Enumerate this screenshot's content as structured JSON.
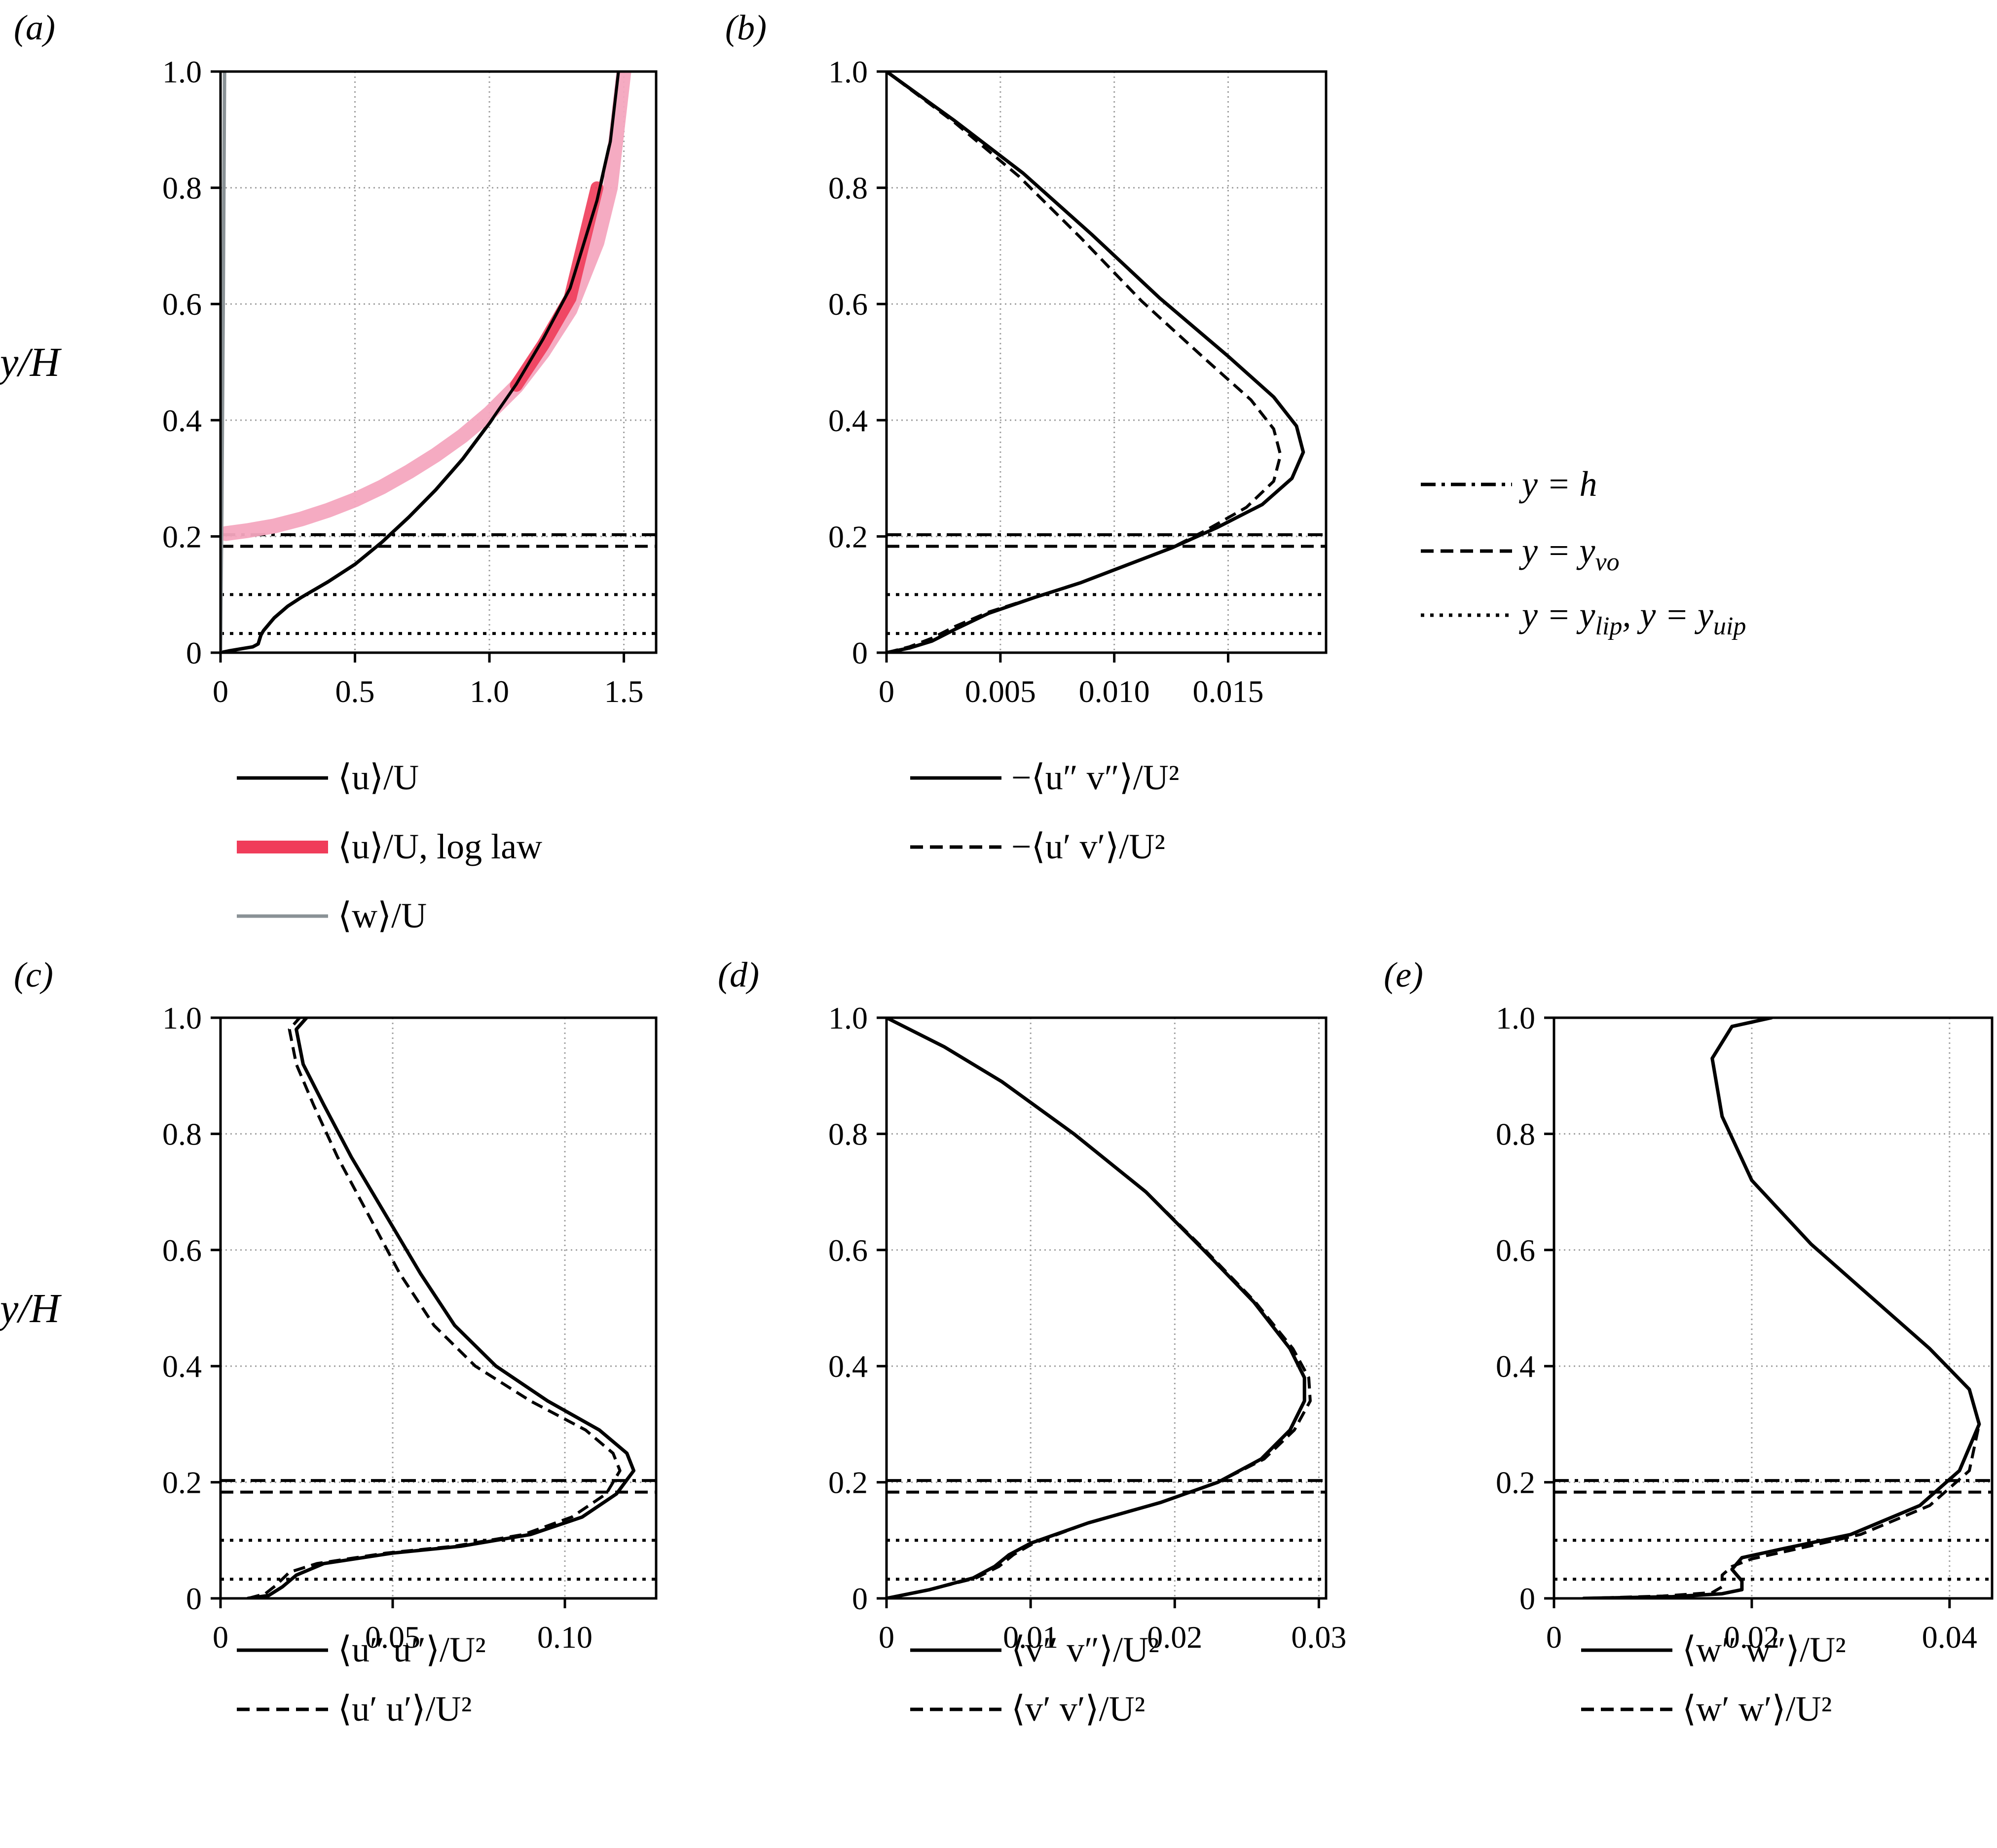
{
  "figure": {
    "line_styles": {
      "y_h": "dash-dot",
      "y_vo": "dashed",
      "y_lip_uip": "dotted"
    },
    "reference_lines": {
      "y_h": 0.203,
      "y_vo": 0.183,
      "y_uip": 0.1,
      "y_lip": 0.033
    },
    "colors": {
      "black": "#000000",
      "loglaw_light": "#f4a6bf",
      "loglaw_dark": "#f03c5a",
      "gray": "#8a9296",
      "grid": "#a0a0a0"
    }
  },
  "chart_data": [
    {
      "id": "a",
      "panel_label": "(a)",
      "type": "line",
      "ylabel": "y/H",
      "xlim": [
        0,
        1.62
      ],
      "ylim": [
        0,
        1.0
      ],
      "xticks": [
        0,
        0.5,
        1.0,
        1.5
      ],
      "xtick_labels": [
        "0",
        "0.5",
        "1.0",
        "1.5"
      ],
      "yticks": [
        0,
        0.2,
        0.4,
        0.6,
        0.8,
        1.0
      ],
      "ytick_labels": [
        "0",
        "0.2",
        "0.4",
        "0.6",
        "0.8",
        "1.0"
      ],
      "grid": true,
      "series": [
        {
          "name": "⟨u⟩/U",
          "style": "solid",
          "color": "#000000",
          "x": [
            0,
            0.03,
            0.08,
            0.12,
            0.14,
            0.15,
            0.16,
            0.2,
            0.25,
            0.3,
            0.4,
            0.5,
            0.6,
            0.7,
            0.8,
            0.9,
            1.0,
            1.1,
            1.2,
            1.3,
            1.4,
            1.45,
            1.48
          ],
          "y": [
            0,
            0.003,
            0.007,
            0.01,
            0.015,
            0.03,
            0.038,
            0.06,
            0.08,
            0.095,
            0.122,
            0.152,
            0.19,
            0.233,
            0.28,
            0.333,
            0.395,
            0.462,
            0.54,
            0.627,
            0.778,
            0.88,
            1.0
          ]
        },
        {
          "name": "⟨u⟩/U, log law",
          "style": "band",
          "color": "#f4a6bf",
          "x": [
            0.02,
            0.1,
            0.2,
            0.3,
            0.4,
            0.5,
            0.6,
            0.7,
            0.8,
            0.9,
            1.0,
            1.1,
            1.2,
            1.3,
            1.4,
            1.45,
            1.5
          ],
          "y": [
            0.205,
            0.21,
            0.218,
            0.23,
            0.245,
            0.263,
            0.285,
            0.311,
            0.34,
            0.373,
            0.412,
            0.458,
            0.518,
            0.59,
            0.706,
            0.8,
            1.0
          ]
        },
        {
          "name": "",
          "style": "band-dark",
          "color": "#f03c5a",
          "x": [
            1.1,
            1.2,
            1.3,
            1.4
          ],
          "y": [
            0.46,
            0.53,
            0.61,
            0.8
          ]
        },
        {
          "name": "⟨w⟩/U",
          "style": "solid",
          "color": "#8a9296",
          "x": [
            0,
            0.005,
            0.01,
            0.015
          ],
          "y": [
            0,
            0.25,
            0.6,
            1.0
          ]
        }
      ]
    },
    {
      "id": "b",
      "panel_label": "(b)",
      "type": "line",
      "ylabel": "",
      "xlim": [
        0,
        0.0193
      ],
      "ylim": [
        0,
        1.0
      ],
      "xticks": [
        0,
        0.005,
        0.01,
        0.015
      ],
      "xtick_labels": [
        "0",
        "0.005",
        "0.010",
        "0.015"
      ],
      "yticks": [
        0,
        0.2,
        0.4,
        0.6,
        0.8,
        1.0
      ],
      "ytick_labels": [
        "0",
        "0.2",
        "0.4",
        "0.6",
        "0.8",
        "1.0"
      ],
      "grid": true,
      "series": [
        {
          "name": "−⟨u″ v″⟩/U²",
          "style": "solid",
          "color": "#000000",
          "x": [
            0,
            0.001,
            0.002,
            0.003,
            0.0045,
            0.0065,
            0.0085,
            0.0105,
            0.0125,
            0.0145,
            0.0165,
            0.0178,
            0.0183,
            0.018,
            0.017,
            0.015,
            0.012,
            0.009,
            0.006,
            0.003,
            0
          ],
          "y": [
            0,
            0.008,
            0.02,
            0.04,
            0.068,
            0.095,
            0.12,
            0.15,
            0.18,
            0.215,
            0.255,
            0.3,
            0.345,
            0.39,
            0.44,
            0.51,
            0.61,
            0.72,
            0.825,
            0.915,
            1.0
          ]
        },
        {
          "name": "−⟨u′ v′⟩/U²",
          "style": "dashed",
          "color": "#000000",
          "x": [
            0,
            0.001,
            0.002,
            0.003,
            0.0045,
            0.0065,
            0.0085,
            0.0105,
            0.0125,
            0.014,
            0.0158,
            0.017,
            0.0173,
            0.017,
            0.016,
            0.014,
            0.0112,
            0.0085,
            0.0058,
            0.003,
            0
          ],
          "y": [
            0,
            0.01,
            0.025,
            0.045,
            0.07,
            0.095,
            0.12,
            0.15,
            0.18,
            0.21,
            0.25,
            0.295,
            0.34,
            0.385,
            0.435,
            0.505,
            0.605,
            0.715,
            0.82,
            0.912,
            1.0
          ]
        }
      ]
    },
    {
      "id": "c",
      "panel_label": "(c)",
      "type": "line",
      "ylabel": "y/H",
      "xlim": [
        0,
        0.1265
      ],
      "ylim": [
        0,
        1.0
      ],
      "xticks": [
        0,
        0.05,
        0.1
      ],
      "xtick_labels": [
        "0",
        "0.05",
        "0.10"
      ],
      "yticks": [
        0,
        0.2,
        0.4,
        0.6,
        0.8,
        1.0
      ],
      "ytick_labels": [
        "0",
        "0.2",
        "0.4",
        "0.6",
        "0.8",
        "1.0"
      ],
      "grid": true,
      "series": [
        {
          "name": "⟨u″ u″⟩/U²",
          "style": "solid",
          "color": "#000000",
          "x": [
            0.008,
            0.014,
            0.018,
            0.022,
            0.03,
            0.05,
            0.07,
            0.09,
            0.105,
            0.115,
            0.12,
            0.118,
            0.11,
            0.095,
            0.08,
            0.068,
            0.058,
            0.048,
            0.038,
            0.03,
            0.024,
            0.022,
            0.025
          ],
          "y": [
            0,
            0.005,
            0.02,
            0.04,
            0.06,
            0.078,
            0.09,
            0.11,
            0.14,
            0.18,
            0.22,
            0.25,
            0.29,
            0.34,
            0.4,
            0.47,
            0.56,
            0.66,
            0.76,
            0.85,
            0.92,
            0.98,
            1.0
          ]
        },
        {
          "name": "⟨u′ u′⟩/U²",
          "style": "dashed",
          "color": "#000000",
          "x": [
            0.008,
            0.013,
            0.016,
            0.02,
            0.028,
            0.048,
            0.068,
            0.088,
            0.102,
            0.112,
            0.116,
            0.114,
            0.106,
            0.09,
            0.074,
            0.062,
            0.052,
            0.043,
            0.034,
            0.027,
            0.022,
            0.02,
            0.023
          ],
          "y": [
            0,
            0.008,
            0.022,
            0.045,
            0.06,
            0.078,
            0.09,
            0.11,
            0.14,
            0.18,
            0.22,
            0.25,
            0.29,
            0.34,
            0.4,
            0.47,
            0.56,
            0.66,
            0.76,
            0.85,
            0.92,
            0.98,
            1.0
          ]
        }
      ]
    },
    {
      "id": "d",
      "panel_label": "(d)",
      "type": "line",
      "ylabel": "",
      "xlim": [
        0,
        0.0305
      ],
      "ylim": [
        0,
        1.0
      ],
      "xticks": [
        0,
        0.01,
        0.02,
        0.03
      ],
      "xtick_labels": [
        "0",
        "0.01",
        "0.02",
        "0.03"
      ],
      "yticks": [
        0,
        0.2,
        0.4,
        0.6,
        0.8,
        1.0
      ],
      "ytick_labels": [
        "0",
        "0.2",
        "0.4",
        "0.6",
        "0.8",
        "1.0"
      ],
      "grid": true,
      "series": [
        {
          "name": "⟨v″ v″⟩/U²",
          "style": "solid",
          "color": "#000000",
          "x": [
            0,
            0.003,
            0.006,
            0.0075,
            0.0085,
            0.01,
            0.014,
            0.019,
            0.023,
            0.026,
            0.028,
            0.029,
            0.029,
            0.028,
            0.0255,
            0.022,
            0.018,
            0.013,
            0.008,
            0.004,
            0
          ],
          "y": [
            0,
            0.015,
            0.035,
            0.055,
            0.075,
            0.095,
            0.13,
            0.165,
            0.2,
            0.24,
            0.29,
            0.34,
            0.38,
            0.43,
            0.51,
            0.6,
            0.7,
            0.8,
            0.89,
            0.95,
            1.0
          ]
        },
        {
          "name": "⟨v′ v′⟩/U²",
          "style": "dashed",
          "color": "#000000",
          "x": [
            0,
            0.003,
            0.0062,
            0.0078,
            0.0088,
            0.0102,
            0.014,
            0.019,
            0.023,
            0.0262,
            0.0283,
            0.0294,
            0.0293,
            0.0282,
            0.0256,
            0.0221,
            0.018,
            0.013,
            0.008,
            0.004,
            0
          ],
          "y": [
            0,
            0.015,
            0.035,
            0.055,
            0.075,
            0.095,
            0.13,
            0.165,
            0.2,
            0.24,
            0.29,
            0.34,
            0.38,
            0.43,
            0.51,
            0.6,
            0.7,
            0.8,
            0.89,
            0.95,
            1.0
          ]
        }
      ]
    },
    {
      "id": "e",
      "panel_label": "(e)",
      "type": "line",
      "ylabel": "",
      "xlim": [
        0,
        0.0443
      ],
      "ylim": [
        0,
        1.0
      ],
      "xticks": [
        0,
        0.02,
        0.04
      ],
      "xtick_labels": [
        "0",
        "0.02",
        "0.04"
      ],
      "yticks": [
        0,
        0.2,
        0.4,
        0.6,
        0.8,
        1.0
      ],
      "ytick_labels": [
        "0",
        "0.2",
        "0.4",
        "0.6",
        "0.8",
        "1.0"
      ],
      "grid": true,
      "series": [
        {
          "name": "⟨w″ w″⟩/U²",
          "style": "solid",
          "color": "#000000",
          "x": [
            0.003,
            0.012,
            0.017,
            0.019,
            0.019,
            0.018,
            0.019,
            0.023,
            0.03,
            0.037,
            0.041,
            0.043,
            0.042,
            0.038,
            0.032,
            0.026,
            0.02,
            0.017,
            0.016,
            0.018,
            0.022
          ],
          "y": [
            0,
            0.003,
            0.008,
            0.015,
            0.03,
            0.05,
            0.07,
            0.085,
            0.11,
            0.16,
            0.22,
            0.3,
            0.36,
            0.43,
            0.52,
            0.61,
            0.72,
            0.83,
            0.93,
            0.985,
            1.0
          ]
        },
        {
          "name": "⟨w′ w′⟩/U²",
          "style": "dashed",
          "color": "#000000",
          "x": [
            0.003,
            0.011,
            0.016,
            0.017,
            0.017,
            0.018,
            0.02,
            0.024,
            0.031,
            0.038,
            0.042,
            0.043,
            0.042,
            0.038,
            0.032,
            0.026,
            0.02,
            0.017,
            0.016,
            0.018,
            0.022
          ],
          "y": [
            0,
            0.004,
            0.01,
            0.02,
            0.04,
            0.055,
            0.068,
            0.083,
            0.11,
            0.16,
            0.22,
            0.3,
            0.36,
            0.43,
            0.52,
            0.61,
            0.72,
            0.83,
            0.93,
            0.985,
            1.0
          ]
        }
      ]
    }
  ]
}
